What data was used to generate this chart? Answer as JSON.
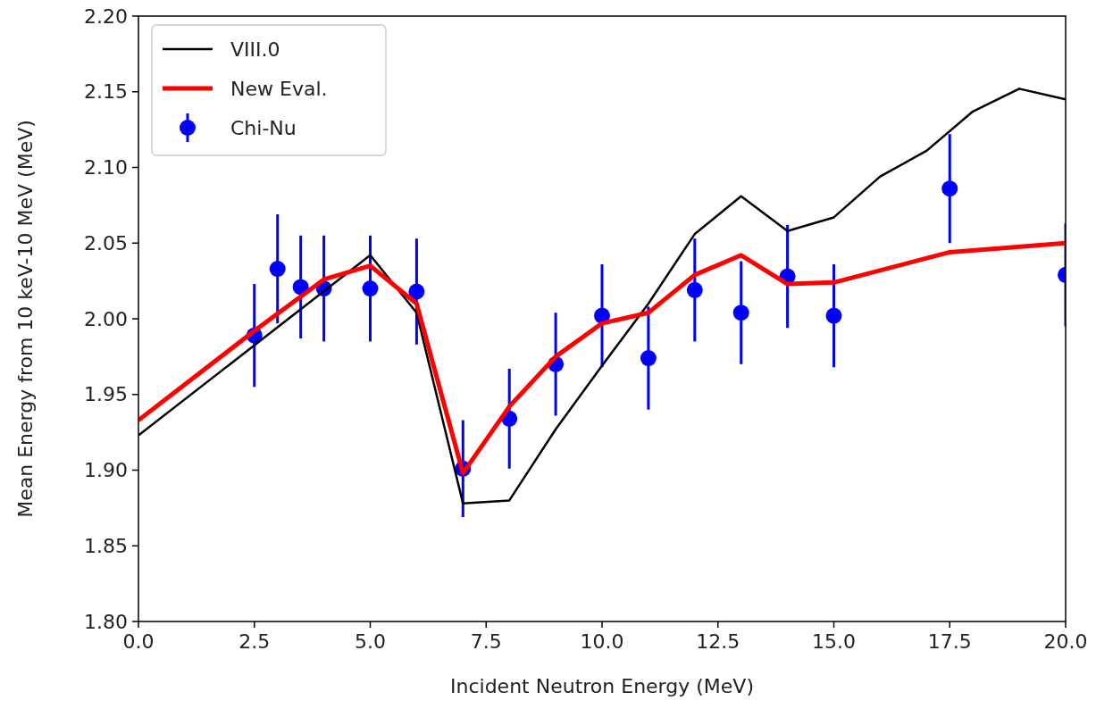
{
  "chart_data": {
    "type": "line",
    "xlabel": "Incident Neutron Energy (MeV)",
    "ylabel": "Mean Energy from 10 keV-10 MeV (MeV)",
    "xlim": [
      0,
      20
    ],
    "ylim": [
      1.8,
      2.2
    ],
    "xticks": [
      {
        "value": 0,
        "label": "0.0"
      },
      {
        "value": 2.5,
        "label": "2.5"
      },
      {
        "value": 5,
        "label": "5.0"
      },
      {
        "value": 7.5,
        "label": "7.5"
      },
      {
        "value": 10,
        "label": "10.0"
      },
      {
        "value": 12.5,
        "label": "12.5"
      },
      {
        "value": 15,
        "label": "15.0"
      },
      {
        "value": 17.5,
        "label": "17.5"
      },
      {
        "value": 20,
        "label": "20.0"
      }
    ],
    "yticks": [
      {
        "value": 1.8,
        "label": "1.80"
      },
      {
        "value": 1.85,
        "label": "1.85"
      },
      {
        "value": 1.9,
        "label": "1.90"
      },
      {
        "value": 1.95,
        "label": "1.95"
      },
      {
        "value": 2.0,
        "label": "2.00"
      },
      {
        "value": 2.05,
        "label": "2.05"
      },
      {
        "value": 2.1,
        "label": "2.10"
      },
      {
        "value": 2.15,
        "label": "2.15"
      },
      {
        "value": 2.2,
        "label": "2.20"
      }
    ],
    "legend": "top left",
    "grid": false,
    "series": [
      {
        "name": "VIII.0",
        "color": "#000000",
        "marker": "none",
        "x": [
          0,
          5,
          6,
          7,
          8,
          9,
          10,
          11,
          12,
          13,
          14,
          15,
          16,
          17,
          18,
          19,
          20
        ],
        "values": [
          1.923,
          2.042,
          2.004,
          1.878,
          1.88,
          1.927,
          1.969,
          2.01,
          2.056,
          2.081,
          2.058,
          2.067,
          2.094,
          2.111,
          2.137,
          2.152,
          2.145
        ]
      },
      {
        "name": "New Eval.",
        "color": "#ff0000",
        "marker": "none",
        "x": [
          0,
          2.5,
          4,
          5,
          6,
          7,
          8,
          9,
          10,
          11,
          12,
          13,
          14,
          15,
          17.5,
          20
        ],
        "values": [
          1.933,
          1.992,
          2.026,
          2.035,
          2.01,
          1.898,
          1.942,
          1.975,
          1.997,
          2.004,
          2.029,
          2.042,
          2.023,
          2.024,
          2.044,
          2.05
        ]
      },
      {
        "name": "Chi-Nu",
        "type": "scatter",
        "color": "#0000ff",
        "marker": "circle",
        "x": [
          2.5,
          3,
          3.5,
          4,
          5,
          6,
          7,
          8,
          9,
          10,
          11,
          12,
          13,
          14,
          15,
          17.5,
          20
        ],
        "values": [
          1.989,
          2.033,
          2.021,
          2.02,
          2.02,
          2.018,
          1.901,
          1.934,
          1.97,
          2.002,
          1.974,
          2.019,
          2.004,
          2.028,
          2.002,
          2.086,
          2.029
        ],
        "errors": [
          0.034,
          0.036,
          0.034,
          0.035,
          0.035,
          0.035,
          0.032,
          0.033,
          0.034,
          0.034,
          0.034,
          0.034,
          0.034,
          0.034,
          0.034,
          0.036,
          0.034
        ]
      }
    ]
  }
}
